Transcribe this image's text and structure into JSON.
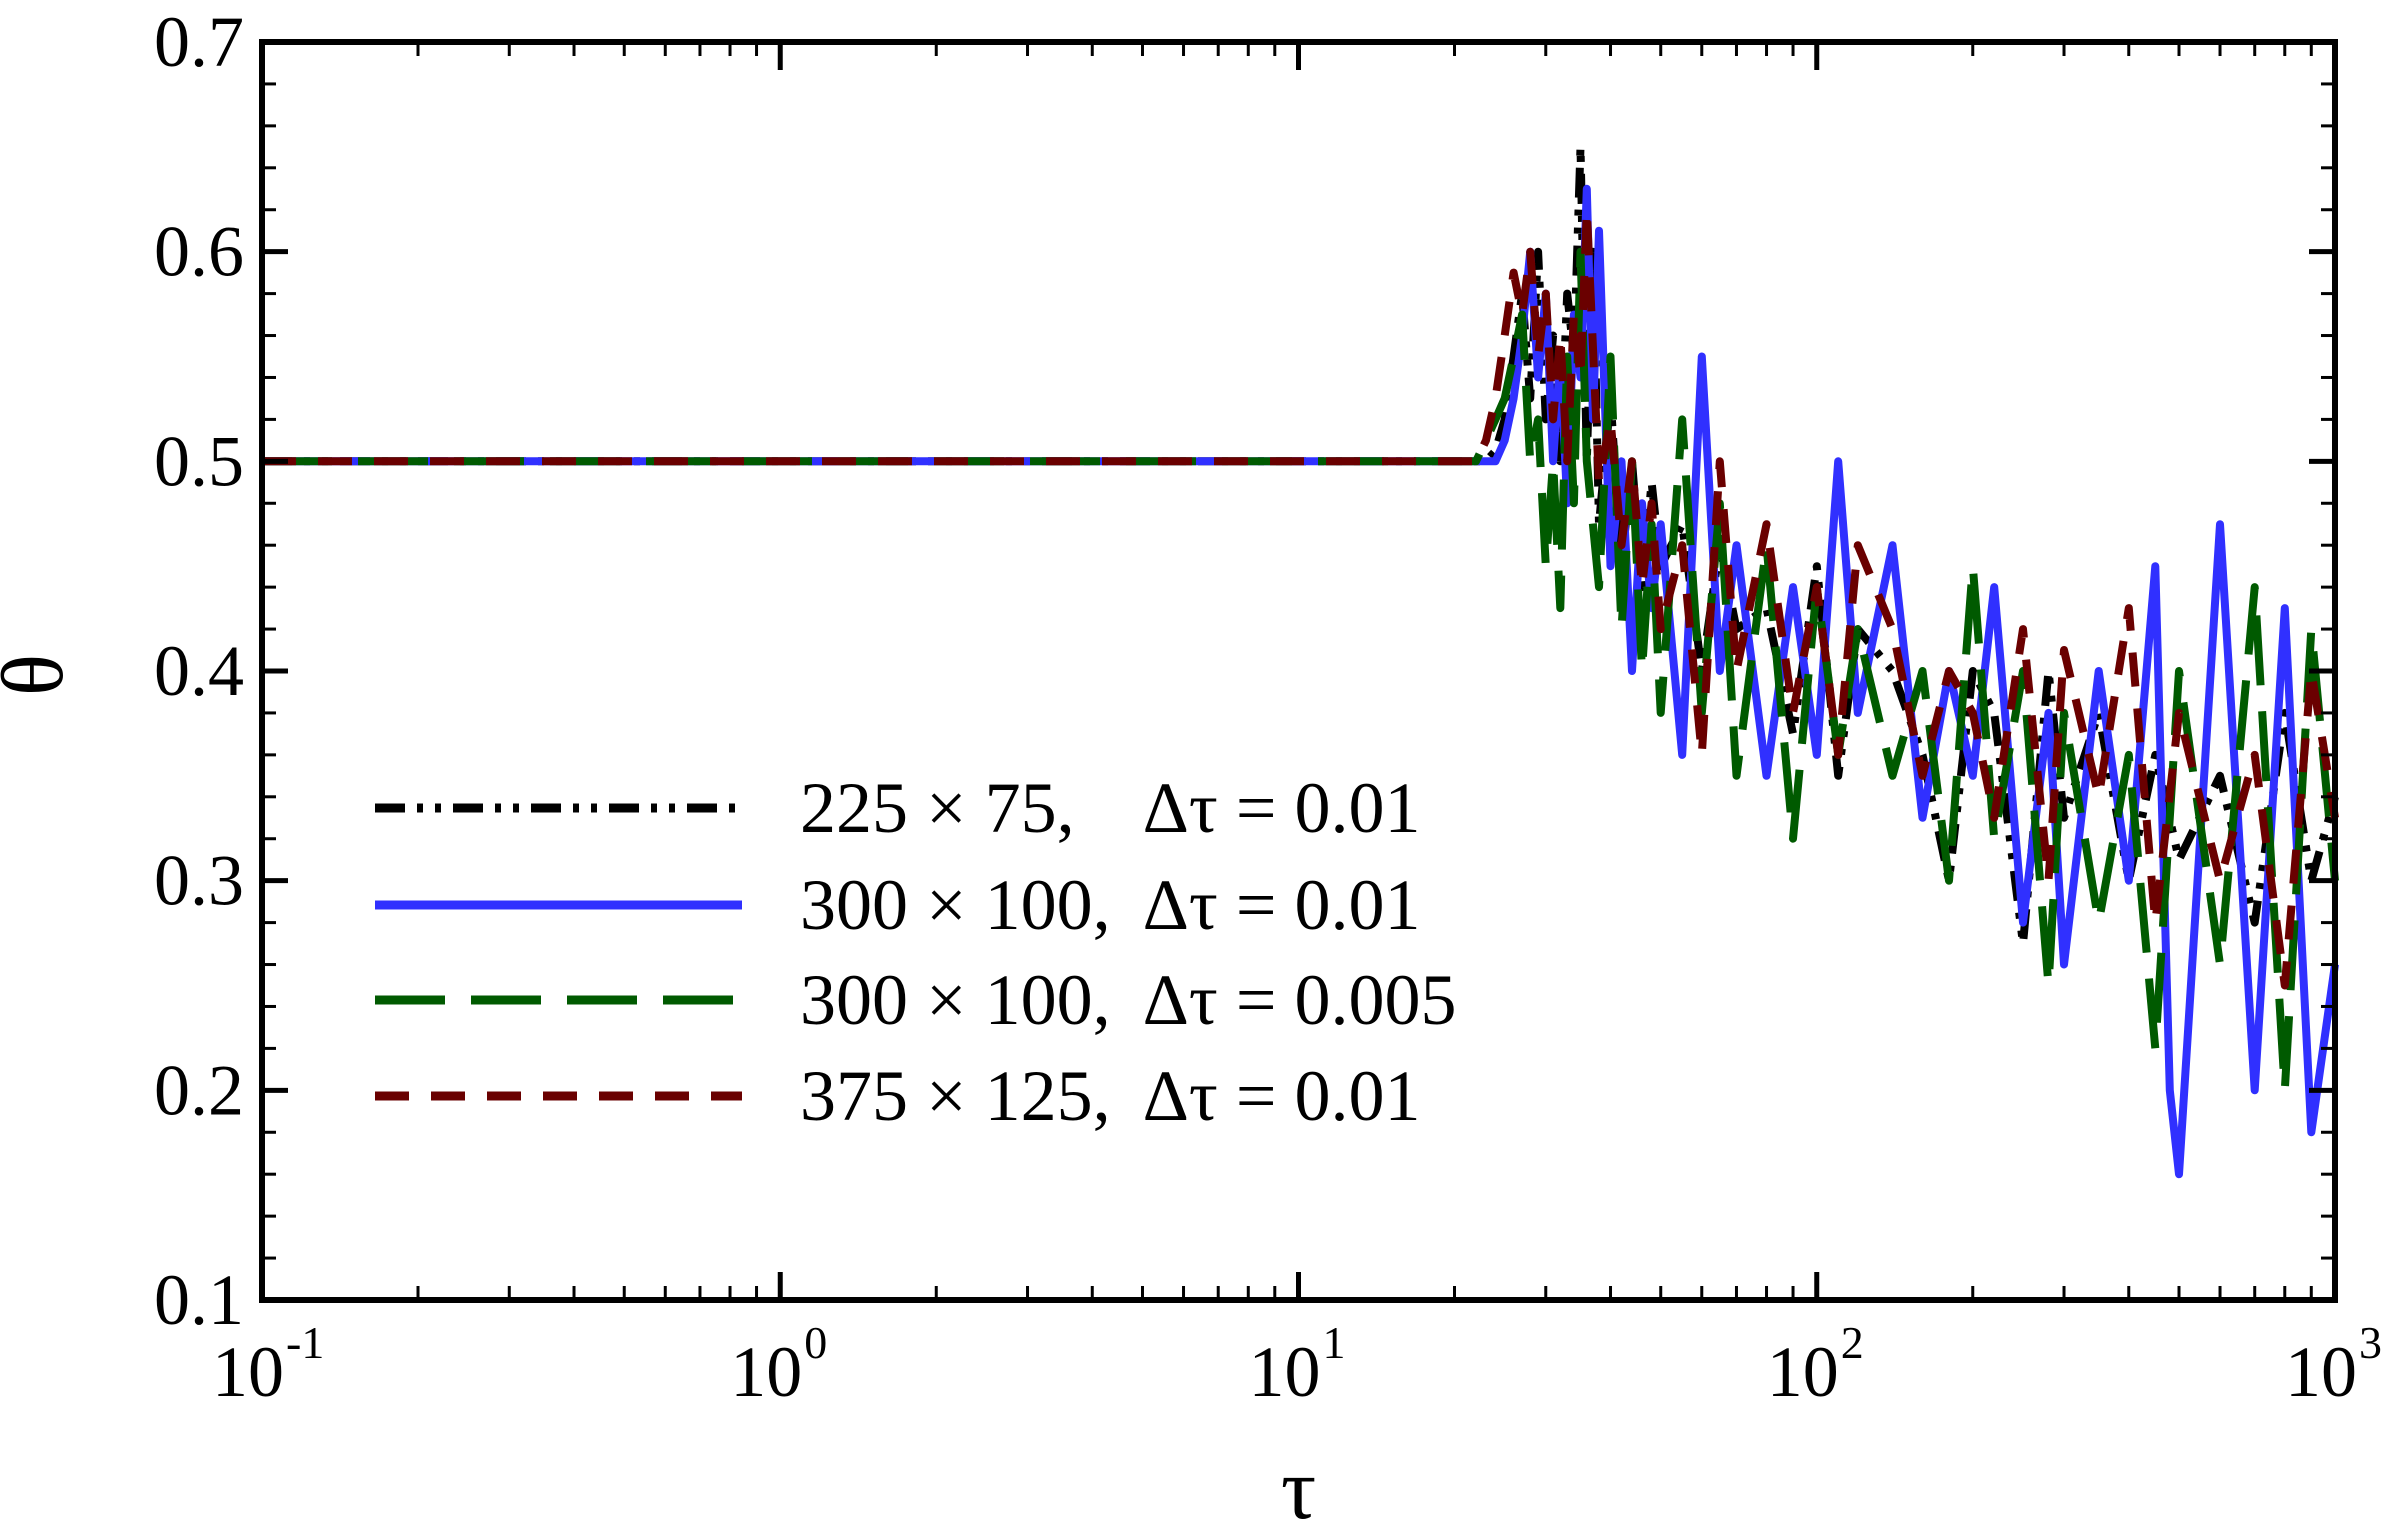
{
  "chart_data": {
    "type": "line",
    "title": "",
    "xlabel": "τ",
    "ylabel": "θ",
    "xscale": "log",
    "xlim": [
      0.1,
      1000
    ],
    "ylim": [
      0.1,
      0.7
    ],
    "grid": false,
    "legend_position": "lower-left",
    "x_ticks": [
      {
        "base": "10",
        "exp": "-1",
        "value": 0.1
      },
      {
        "base": "10",
        "exp": "0",
        "value": 1
      },
      {
        "base": "10",
        "exp": "1",
        "value": 10
      },
      {
        "base": "10",
        "exp": "2",
        "value": 100
      },
      {
        "base": "10",
        "exp": "3",
        "value": 1000
      }
    ],
    "y_ticks": [
      {
        "label": "0.1",
        "value": 0.1
      },
      {
        "label": "0.2",
        "value": 0.2
      },
      {
        "label": "0.3",
        "value": 0.3
      },
      {
        "label": "0.4",
        "value": 0.4
      },
      {
        "label": "0.5",
        "value": 0.5
      },
      {
        "label": "0.6",
        "value": 0.6
      },
      {
        "label": "0.7",
        "value": 0.7
      }
    ],
    "series": [
      {
        "name": "225 × 75,    Δτ = 0.01",
        "color": "#000000",
        "dash": "dash-dot-dot",
        "x": [
          0.1,
          23,
          24,
          25,
          26,
          27,
          28,
          29,
          30,
          31,
          32,
          33,
          34,
          35,
          36,
          37,
          38,
          40,
          42,
          44,
          46,
          48,
          50,
          55,
          60,
          65,
          70,
          80,
          90,
          100,
          110,
          120,
          140,
          160,
          180,
          200,
          220,
          250,
          280,
          300,
          350,
          400,
          450,
          500,
          600,
          700,
          800,
          900,
          1000
        ],
        "y": [
          0.5,
          0.5,
          0.505,
          0.52,
          0.55,
          0.58,
          0.53,
          0.6,
          0.52,
          0.56,
          0.5,
          0.58,
          0.55,
          0.65,
          0.5,
          0.6,
          0.47,
          0.53,
          0.45,
          0.5,
          0.44,
          0.49,
          0.45,
          0.47,
          0.4,
          0.46,
          0.42,
          0.43,
          0.37,
          0.45,
          0.35,
          0.42,
          0.4,
          0.36,
          0.3,
          0.4,
          0.38,
          0.27,
          0.4,
          0.33,
          0.38,
          0.3,
          0.36,
          0.31,
          0.35,
          0.28,
          0.38,
          0.3,
          0.34
        ]
      },
      {
        "name": "300 × 100,  Δτ = 0.01",
        "color": "#3030ff",
        "dash": "solid",
        "x": [
          0.1,
          24,
          25,
          26,
          27,
          28,
          29,
          30,
          31,
          32,
          33,
          34,
          35,
          36,
          37,
          38,
          40,
          42,
          44,
          46,
          48,
          50,
          55,
          60,
          65,
          70,
          80,
          90,
          100,
          110,
          120,
          140,
          160,
          180,
          200,
          220,
          250,
          280,
          300,
          350,
          400,
          450,
          480,
          500,
          600,
          700,
          800,
          900,
          1000
        ],
        "y": [
          0.5,
          0.5,
          0.51,
          0.53,
          0.56,
          0.6,
          0.54,
          0.58,
          0.5,
          0.55,
          0.48,
          0.57,
          0.54,
          0.63,
          0.52,
          0.61,
          0.45,
          0.5,
          0.4,
          0.48,
          0.43,
          0.47,
          0.36,
          0.55,
          0.4,
          0.46,
          0.35,
          0.44,
          0.36,
          0.5,
          0.38,
          0.46,
          0.33,
          0.4,
          0.35,
          0.44,
          0.28,
          0.38,
          0.26,
          0.4,
          0.3,
          0.45,
          0.2,
          0.16,
          0.47,
          0.2,
          0.43,
          0.18,
          0.26
        ]
      },
      {
        "name": "300 × 100,  Δτ = 0.005",
        "color": "#005a00",
        "dash": "long-dash",
        "x": [
          0.1,
          22,
          23,
          24,
          25,
          26,
          27,
          28,
          29,
          30,
          31,
          32,
          33,
          34,
          35,
          36,
          38,
          40,
          42,
          44,
          46,
          48,
          50,
          55,
          60,
          65,
          70,
          80,
          90,
          100,
          110,
          120,
          140,
          160,
          180,
          200,
          220,
          250,
          280,
          300,
          350,
          400,
          450,
          500,
          600,
          700,
          800,
          900,
          1000
        ],
        "y": [
          0.5,
          0.5,
          0.51,
          0.52,
          0.53,
          0.55,
          0.57,
          0.5,
          0.52,
          0.45,
          0.5,
          0.43,
          0.55,
          0.48,
          0.6,
          0.5,
          0.44,
          0.55,
          0.42,
          0.5,
          0.4,
          0.47,
          0.38,
          0.52,
          0.38,
          0.48,
          0.35,
          0.46,
          0.32,
          0.44,
          0.36,
          0.42,
          0.35,
          0.4,
          0.3,
          0.45,
          0.32,
          0.4,
          0.25,
          0.38,
          0.28,
          0.36,
          0.22,
          0.4,
          0.26,
          0.44,
          0.2,
          0.42,
          0.3
        ]
      },
      {
        "name": "375 × 125,  Δτ = 0.01",
        "color": "#6a0000",
        "dash": "dash",
        "x": [
          0.1,
          21,
          22,
          23,
          24,
          25,
          26,
          27,
          28,
          29,
          30,
          31,
          32,
          33,
          34,
          35,
          36,
          38,
          40,
          42,
          44,
          46,
          48,
          50,
          55,
          60,
          65,
          70,
          80,
          90,
          100,
          110,
          120,
          140,
          160,
          180,
          200,
          220,
          250,
          280,
          300,
          350,
          400,
          450,
          500,
          600,
          700,
          800,
          900,
          1000
        ],
        "y": [
          0.5,
          0.5,
          0.5,
          0.51,
          0.53,
          0.56,
          0.59,
          0.57,
          0.6,
          0.55,
          0.58,
          0.52,
          0.56,
          0.5,
          0.57,
          0.54,
          0.62,
          0.49,
          0.52,
          0.46,
          0.5,
          0.44,
          0.48,
          0.42,
          0.46,
          0.36,
          0.5,
          0.4,
          0.47,
          0.38,
          0.44,
          0.36,
          0.46,
          0.42,
          0.35,
          0.4,
          0.38,
          0.33,
          0.42,
          0.3,
          0.41,
          0.34,
          0.43,
          0.28,
          0.38,
          0.3,
          0.36,
          0.25,
          0.4,
          0.33
        ]
      }
    ]
  }
}
